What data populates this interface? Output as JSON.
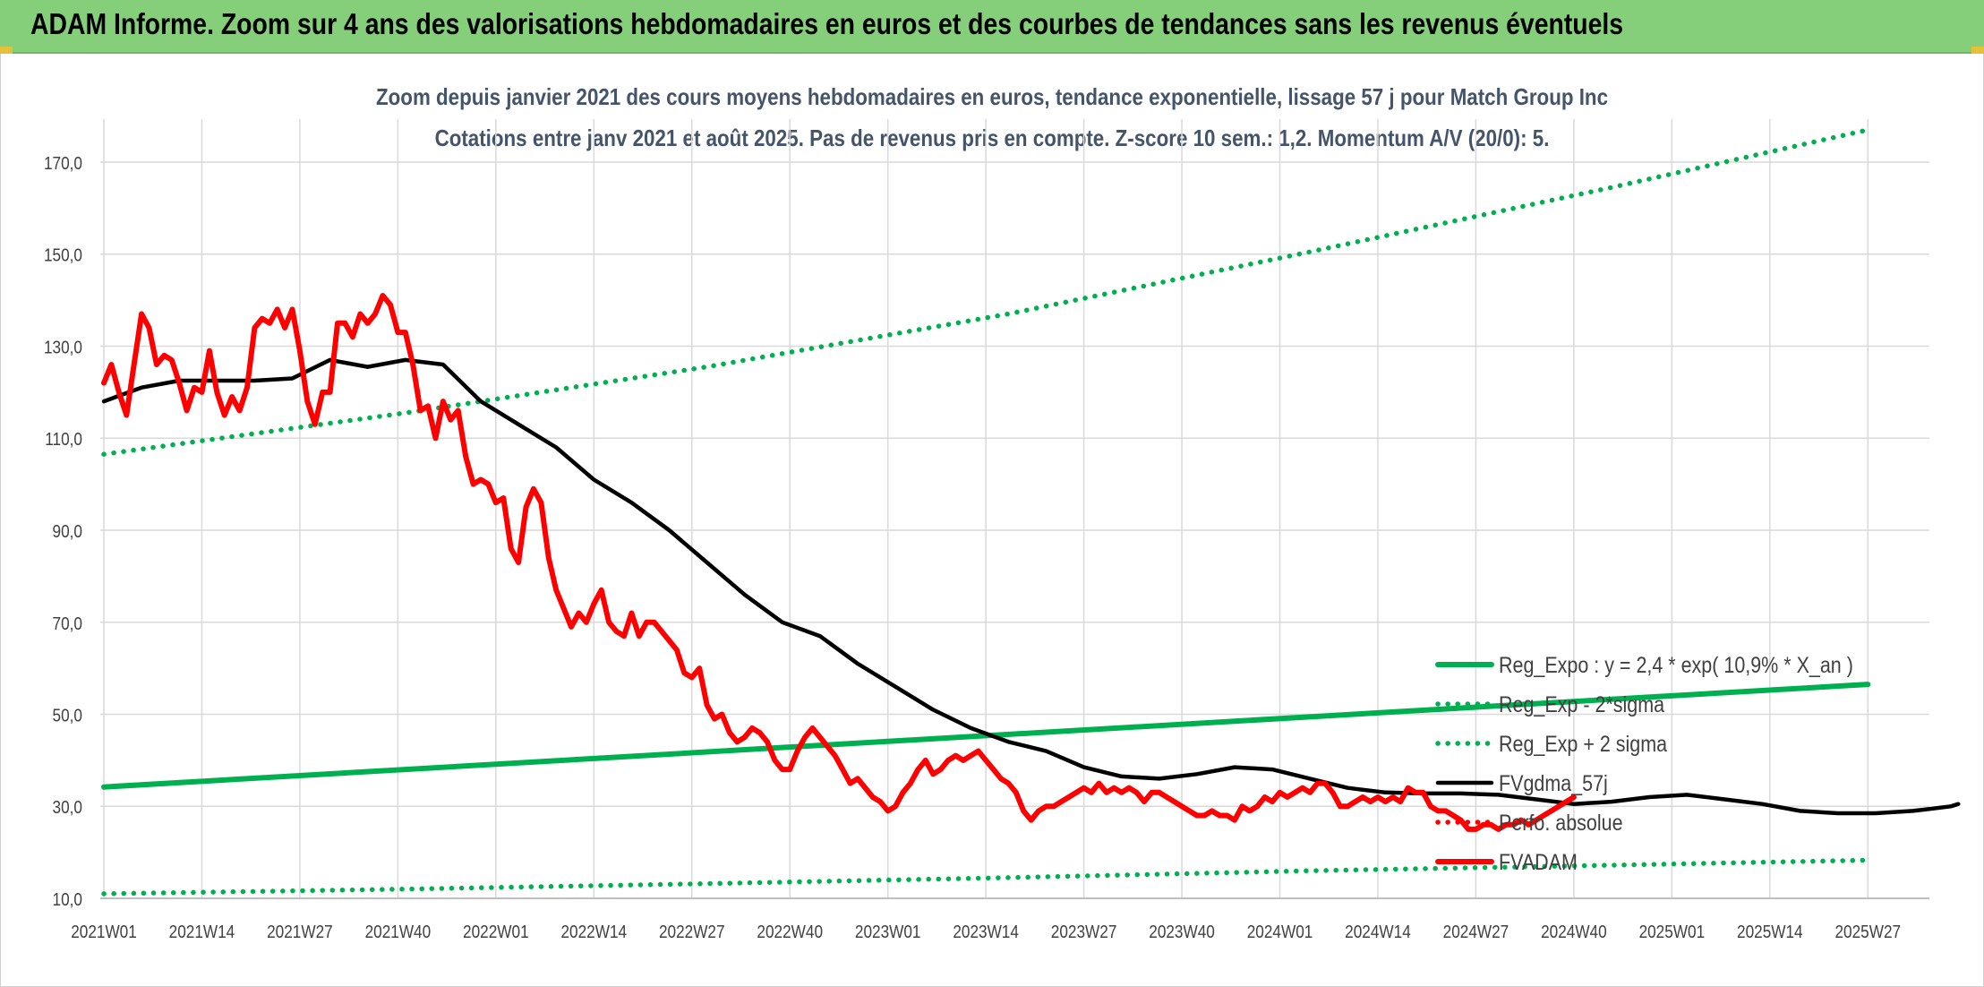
{
  "header": {
    "title": "ADAM Informe. Zoom sur 4 ans des valorisations hebdomadaires en euros et des courbes de tendances sans les revenus éventuels"
  },
  "colors": {
    "banner": "#86cf7a",
    "trend": "#00b050",
    "adam": "#ff0000",
    "gdma": "#000000"
  },
  "chart_data": {
    "type": "line",
    "title": "Zoom depuis janvier 2021 des cours moyens hebdomadaires en euros, tendance exponentielle, lissage 57 j pour Match Group Inc",
    "subtitle": "Cotations entre janv 2021 et août 2025. Pas de revenus pris en compte. Z-score 10 sem.: 1,2. Momentum A/V (20/0): 5.",
    "x_tick_labels": [
      "2021W01",
      "2021W14",
      "2021W27",
      "2021W40",
      "2022W01",
      "2022W14",
      "2022W27",
      "2022W40",
      "2023W01",
      "2023W14",
      "2023W27",
      "2023W40",
      "2024W01",
      "2024W14",
      "2024W27",
      "2024W40",
      "2025W01",
      "2025W14",
      "2025W27"
    ],
    "y_tick_labels": [
      "10,0",
      "30,0",
      "50,0",
      "70,0",
      "90,0",
      "110,0",
      "130,0",
      "150,0",
      "170,0"
    ],
    "ylim": [
      10,
      178
    ],
    "grid": true,
    "legend_position": "right",
    "series": [
      {
        "name": "Reg_Expo : y = 2,4 * exp( 10,9% *  X_an )",
        "style": "solid",
        "color": "#00b050",
        "points": [
          [
            0,
            34.2
          ],
          [
            234,
            56.5
          ]
        ]
      },
      {
        "name": "Reg_Exp - 2*sigma",
        "style": "dotted",
        "color": "#00b050",
        "points": [
          [
            0,
            11.0
          ],
          [
            40,
            12.0
          ],
          [
            80,
            13.2
          ],
          [
            120,
            14.5
          ],
          [
            160,
            16.0
          ],
          [
            200,
            17.2
          ],
          [
            234,
            18.3
          ]
        ]
      },
      {
        "name": "Reg_Exp + 2 sigma",
        "style": "dotted",
        "color": "#00b050",
        "points": [
          [
            0,
            106.5
          ],
          [
            40,
            115.5
          ],
          [
            80,
            125.5
          ],
          [
            120,
            137.0
          ],
          [
            160,
            150.5
          ],
          [
            200,
            164.5
          ],
          [
            234,
            177.0
          ]
        ]
      },
      {
        "name": "FVgdma_57j",
        "style": "solid",
        "color": "#000000",
        "points": [
          [
            0,
            118
          ],
          [
            5,
            121
          ],
          [
            10,
            122.5
          ],
          [
            15,
            122.5
          ],
          [
            20,
            122.5
          ],
          [
            25,
            123
          ],
          [
            30,
            127
          ],
          [
            35,
            125.5
          ],
          [
            40,
            127
          ],
          [
            45,
            126
          ],
          [
            50,
            118
          ],
          [
            55,
            113
          ],
          [
            60,
            108
          ],
          [
            65,
            101
          ],
          [
            70,
            96
          ],
          [
            75,
            90
          ],
          [
            80,
            83
          ],
          [
            85,
            76
          ],
          [
            90,
            70
          ],
          [
            95,
            67
          ],
          [
            100,
            61
          ],
          [
            105,
            56
          ],
          [
            110,
            51
          ],
          [
            115,
            47
          ],
          [
            120,
            44
          ],
          [
            125,
            42
          ],
          [
            130,
            38.5
          ],
          [
            135,
            36.5
          ],
          [
            140,
            36
          ],
          [
            145,
            37
          ],
          [
            150,
            38.5
          ],
          [
            155,
            38
          ],
          [
            160,
            36
          ],
          [
            165,
            34
          ],
          [
            170,
            33
          ],
          [
            175,
            32.8
          ],
          [
            180,
            32.8
          ],
          [
            185,
            32.5
          ],
          [
            190,
            31.5
          ],
          [
            195,
            30.5
          ],
          [
            200,
            31
          ],
          [
            205,
            32
          ],
          [
            210,
            32.5
          ],
          [
            215,
            31.5
          ],
          [
            220,
            30.5
          ],
          [
            225,
            29
          ],
          [
            230,
            28.5
          ],
          [
            235,
            28.5
          ],
          [
            240,
            29
          ],
          [
            245,
            30
          ],
          [
            246,
            30.5
          ]
        ]
      },
      {
        "name": "Perfo. absolue",
        "style": "dotted",
        "color": "#ff0000",
        "points": []
      },
      {
        "name": "FVADAM",
        "style": "solid",
        "color": "#ff0000",
        "points": [
          [
            0,
            122
          ],
          [
            1,
            126
          ],
          [
            2,
            120
          ],
          [
            3,
            115
          ],
          [
            4,
            126
          ],
          [
            5,
            137
          ],
          [
            6,
            134
          ],
          [
            7,
            126
          ],
          [
            8,
            128
          ],
          [
            9,
            127
          ],
          [
            10,
            122
          ],
          [
            11,
            116
          ],
          [
            12,
            121
          ],
          [
            13,
            120
          ],
          [
            14,
            129
          ],
          [
            15,
            120
          ],
          [
            16,
            115
          ],
          [
            17,
            119
          ],
          [
            18,
            116
          ],
          [
            19,
            121
          ],
          [
            20,
            134
          ],
          [
            21,
            136
          ],
          [
            22,
            135
          ],
          [
            23,
            138
          ],
          [
            24,
            134
          ],
          [
            25,
            138
          ],
          [
            26,
            129
          ],
          [
            27,
            118
          ],
          [
            28,
            113
          ],
          [
            29,
            120
          ],
          [
            30,
            120
          ],
          [
            31,
            135
          ],
          [
            32,
            135
          ],
          [
            33,
            132
          ],
          [
            34,
            137
          ],
          [
            35,
            135
          ],
          [
            36,
            137
          ],
          [
            37,
            141
          ],
          [
            38,
            139
          ],
          [
            39,
            133
          ],
          [
            40,
            133
          ],
          [
            41,
            126
          ],
          [
            42,
            116
          ],
          [
            43,
            117
          ],
          [
            44,
            110
          ],
          [
            45,
            118
          ],
          [
            46,
            114
          ],
          [
            47,
            116
          ],
          [
            48,
            106
          ],
          [
            49,
            100
          ],
          [
            50,
            101
          ],
          [
            51,
            100
          ],
          [
            52,
            96
          ],
          [
            53,
            97
          ],
          [
            54,
            86
          ],
          [
            55,
            83
          ],
          [
            56,
            95
          ],
          [
            57,
            99
          ],
          [
            58,
            96
          ],
          [
            59,
            84
          ],
          [
            60,
            77
          ],
          [
            61,
            73
          ],
          [
            62,
            69
          ],
          [
            63,
            72
          ],
          [
            64,
            70
          ],
          [
            65,
            74
          ],
          [
            66,
            77
          ],
          [
            67,
            70
          ],
          [
            68,
            68
          ],
          [
            69,
            67
          ],
          [
            70,
            72
          ],
          [
            71,
            67
          ],
          [
            72,
            70
          ],
          [
            73,
            70
          ],
          [
            74,
            68
          ],
          [
            75,
            66
          ],
          [
            76,
            64
          ],
          [
            77,
            59
          ],
          [
            78,
            58
          ],
          [
            79,
            60
          ],
          [
            80,
            52
          ],
          [
            81,
            49
          ],
          [
            82,
            50
          ],
          [
            83,
            46
          ],
          [
            84,
            44
          ],
          [
            85,
            45
          ],
          [
            86,
            47
          ],
          [
            87,
            46
          ],
          [
            88,
            44
          ],
          [
            89,
            40
          ],
          [
            90,
            38
          ],
          [
            91,
            38
          ],
          [
            92,
            42
          ],
          [
            93,
            45
          ],
          [
            94,
            47
          ],
          [
            95,
            45
          ],
          [
            96,
            43
          ],
          [
            97,
            41
          ],
          [
            98,
            38
          ],
          [
            99,
            35
          ],
          [
            100,
            36
          ],
          [
            101,
            34
          ],
          [
            102,
            32
          ],
          [
            103,
            31
          ],
          [
            104,
            29
          ],
          [
            105,
            30
          ],
          [
            106,
            33
          ],
          [
            107,
            35
          ],
          [
            108,
            38
          ],
          [
            109,
            40
          ],
          [
            110,
            37
          ],
          [
            111,
            38
          ],
          [
            112,
            40
          ],
          [
            113,
            41
          ],
          [
            114,
            40
          ],
          [
            115,
            41
          ],
          [
            116,
            42
          ],
          [
            117,
            40
          ],
          [
            118,
            38
          ],
          [
            119,
            36
          ],
          [
            120,
            35
          ],
          [
            121,
            33
          ],
          [
            122,
            29
          ],
          [
            123,
            27
          ],
          [
            124,
            29
          ],
          [
            125,
            30
          ],
          [
            126,
            30
          ],
          [
            127,
            31
          ],
          [
            128,
            32
          ],
          [
            129,
            33
          ],
          [
            130,
            34
          ],
          [
            131,
            33
          ],
          [
            132,
            35
          ],
          [
            133,
            33
          ],
          [
            134,
            34
          ],
          [
            135,
            33
          ],
          [
            136,
            34
          ],
          [
            137,
            33
          ],
          [
            138,
            31
          ],
          [
            139,
            33
          ],
          [
            140,
            33
          ],
          [
            141,
            32
          ],
          [
            142,
            31
          ],
          [
            143,
            30
          ],
          [
            144,
            29
          ],
          [
            145,
            28
          ],
          [
            146,
            28
          ],
          [
            147,
            29
          ],
          [
            148,
            28
          ],
          [
            149,
            28
          ],
          [
            150,
            27
          ],
          [
            151,
            30
          ],
          [
            152,
            29
          ],
          [
            153,
            30
          ],
          [
            154,
            32
          ],
          [
            155,
            31
          ],
          [
            156,
            33
          ],
          [
            157,
            32
          ],
          [
            158,
            33
          ],
          [
            159,
            34
          ],
          [
            160,
            33
          ],
          [
            161,
            35
          ],
          [
            162,
            35
          ],
          [
            163,
            33
          ],
          [
            164,
            30
          ],
          [
            165,
            30
          ],
          [
            166,
            31
          ],
          [
            167,
            32
          ],
          [
            168,
            31
          ],
          [
            169,
            32
          ],
          [
            170,
            31
          ],
          [
            171,
            32
          ],
          [
            172,
            31
          ],
          [
            173,
            34
          ],
          [
            174,
            33
          ],
          [
            175,
            33
          ],
          [
            176,
            30
          ],
          [
            177,
            29
          ],
          [
            178,
            29
          ],
          [
            179,
            28
          ],
          [
            180,
            27
          ],
          [
            181,
            25
          ],
          [
            182,
            25
          ],
          [
            183,
            26
          ],
          [
            184,
            26
          ],
          [
            185,
            25
          ],
          [
            186,
            26
          ],
          [
            187,
            26
          ],
          [
            188,
            27
          ],
          [
            189,
            26
          ],
          [
            190,
            27
          ],
          [
            191,
            28
          ],
          [
            192,
            29
          ],
          [
            193,
            30
          ],
          [
            194,
            31
          ],
          [
            195,
            32
          ]
        ]
      }
    ]
  }
}
